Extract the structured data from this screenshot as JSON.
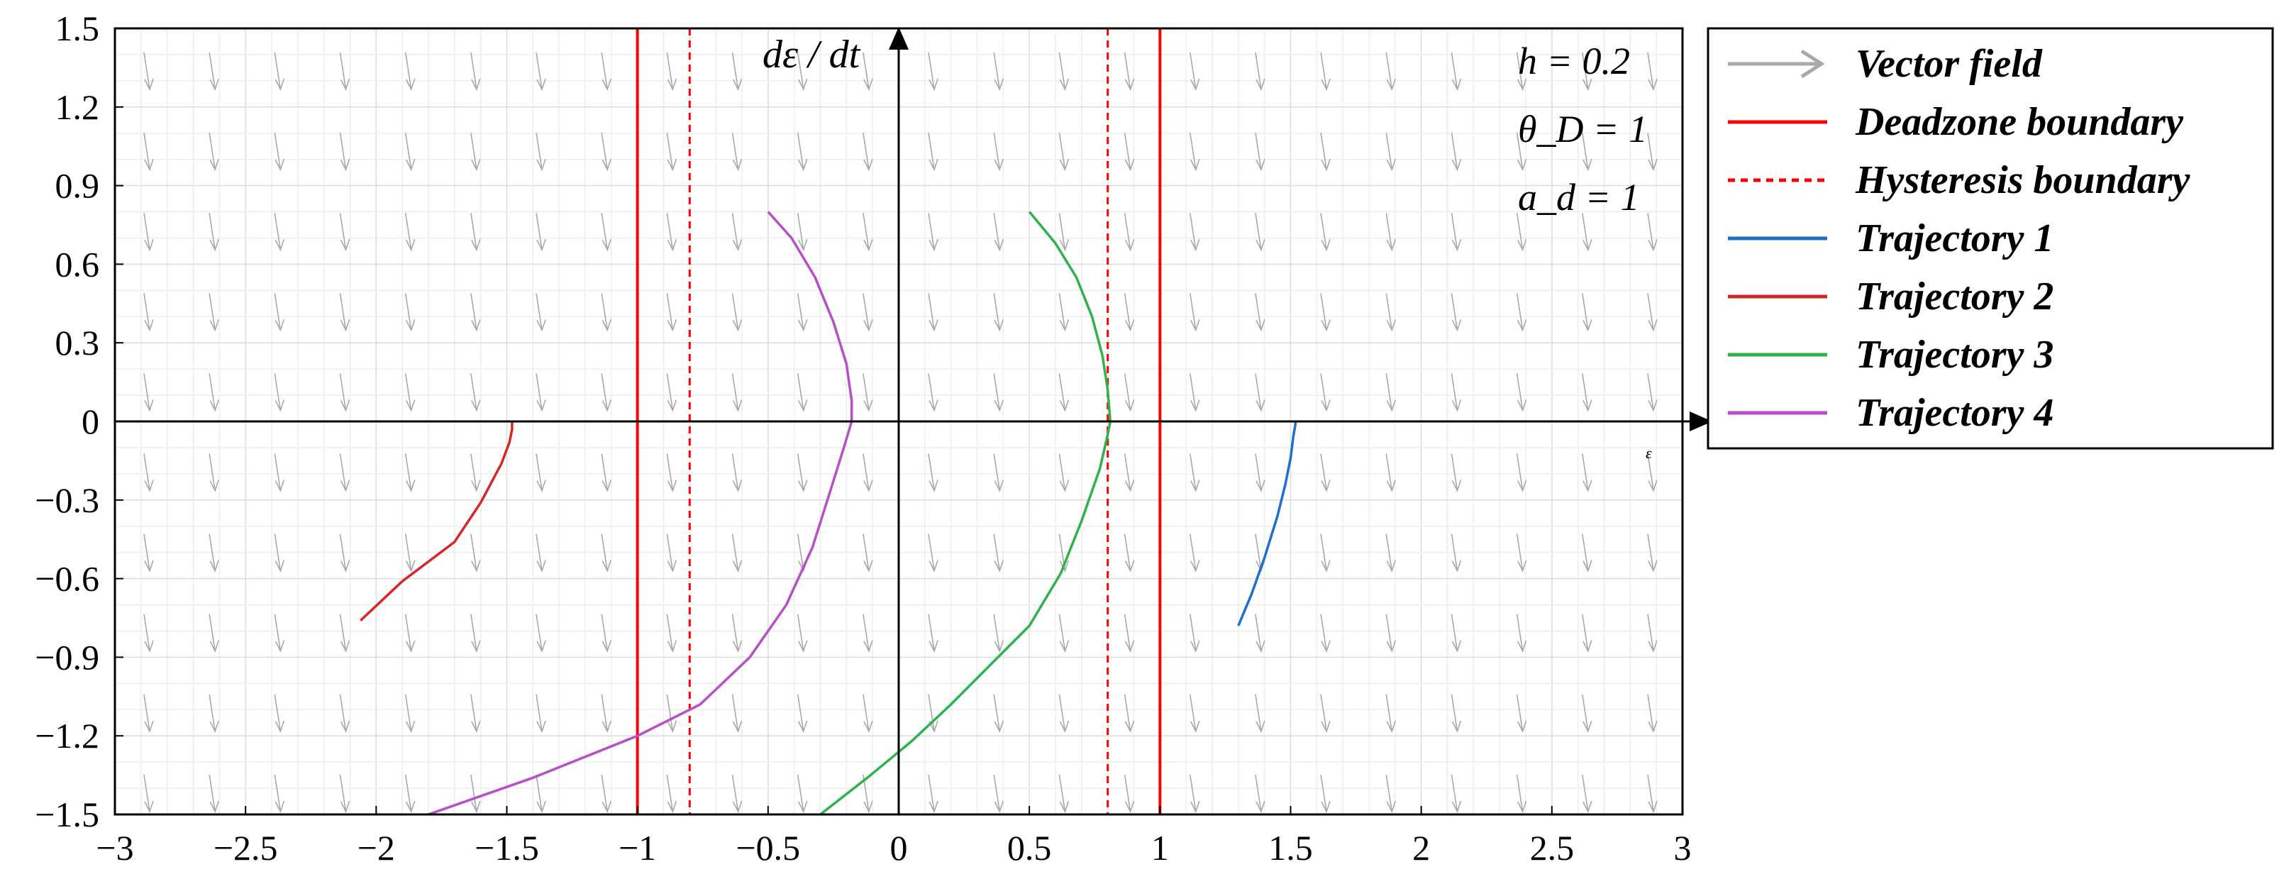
{
  "chart_data": {
    "type": "line",
    "title": "",
    "xlabel": "ε",
    "ylabel": "dε / dt",
    "xlim": [
      -3,
      3
    ],
    "ylim": [
      -1.5,
      1.5
    ],
    "xticks": [
      "−3",
      "−2.5",
      "−2",
      "−1.5",
      "−1",
      "−0.5",
      "0",
      "0.5",
      "1",
      "1.5",
      "2",
      "2.5",
      "3"
    ],
    "yticks": [
      "−1.5",
      "−1.2",
      "−0.9",
      "−0.6",
      "−0.3",
      "0",
      "0.3",
      "0.6",
      "0.9",
      "1.2",
      "1.5"
    ],
    "grid": true,
    "legend_position": "outside-right",
    "annotations": [
      "h = 0.2",
      "θ_D = 1",
      "a_d = 1"
    ],
    "vector_field": {
      "name": "Vector field",
      "color": "#a9a9a9"
    },
    "boundaries": [
      {
        "name": "Deadzone boundary",
        "x": [
          -1,
          1
        ],
        "color": "#ff0000",
        "style": "solid"
      },
      {
        "name": "Hysteresis boundary",
        "x": [
          -0.8,
          0.8
        ],
        "color": "#ff0000",
        "style": "dashed"
      }
    ],
    "series": [
      {
        "name": "Trajectory 1",
        "color": "#1f6fd1",
        "x": [
          1.3,
          1.35,
          1.4,
          1.45,
          1.48,
          1.5,
          1.51,
          1.52
        ],
        "y": [
          -0.78,
          -0.66,
          -0.52,
          -0.36,
          -0.24,
          -0.14,
          -0.06,
          0
        ]
      },
      {
        "name": "Trajectory 2",
        "color": "#d62728",
        "x": [
          -2.06,
          -1.9,
          -1.7,
          -1.6,
          -1.52,
          -1.49,
          -1.48,
          -1.48
        ],
        "y": [
          -0.76,
          -0.61,
          -0.46,
          -0.31,
          -0.16,
          -0.08,
          -0.03,
          0
        ]
      },
      {
        "name": "Trajectory 3",
        "color": "#2db34a",
        "x": [
          -0.3,
          -0.12,
          0.05,
          0.2,
          0.34,
          0.5,
          0.62,
          0.7,
          0.77,
          0.8,
          0.81,
          0.8,
          0.78,
          0.74,
          0.68,
          0.6,
          0.5
        ],
        "y": [
          -1.5,
          -1.36,
          -1.22,
          -1.08,
          -0.94,
          -0.78,
          -0.58,
          -0.38,
          -0.18,
          -0.05,
          0,
          0.12,
          0.25,
          0.4,
          0.55,
          0.68,
          0.8
        ]
      },
      {
        "name": "Trajectory 4",
        "color": "#b84ec8",
        "x": [
          -1.8,
          -1.4,
          -1.0,
          -0.76,
          -0.57,
          -0.43,
          -0.33,
          -0.26,
          -0.21,
          -0.18,
          -0.18,
          -0.2,
          -0.25,
          -0.32,
          -0.41,
          -0.5
        ],
        "y": [
          -1.5,
          -1.36,
          -1.2,
          -1.08,
          -0.9,
          -0.7,
          -0.48,
          -0.26,
          -0.1,
          0,
          0.08,
          0.22,
          0.38,
          0.55,
          0.7,
          0.8
        ]
      }
    ]
  }
}
